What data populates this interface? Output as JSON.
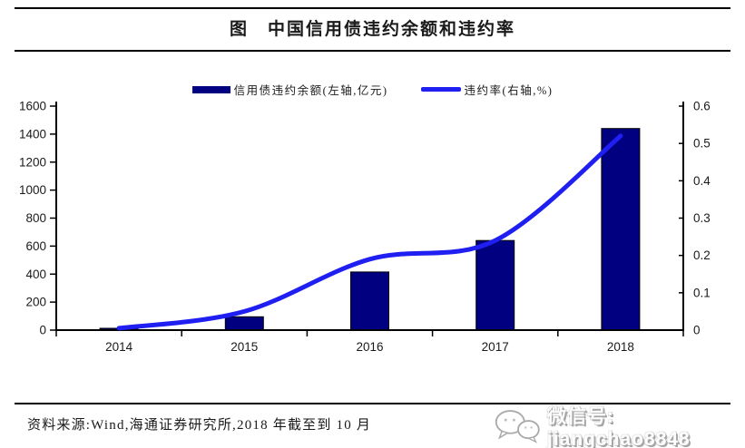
{
  "figure": {
    "title": "图　中国信用债违约余额和违约率",
    "source_note": "资料来源:Wind,海通证券研究所,2018 年截至到 10 月",
    "watermark_text": "微信号: jiangchao8848",
    "watermark_icon": "wechat-icon"
  },
  "chart_data": {
    "type": "combo-bar-line",
    "title": "中国信用债违约余额和违约率",
    "categories": [
      "2014",
      "2015",
      "2016",
      "2017",
      "2018"
    ],
    "series": [
      {
        "name": "信用债违约余额(左轴,亿元)",
        "type": "bar",
        "axis": "left",
        "color": "#000080",
        "values": [
          13,
          95,
          415,
          640,
          1440
        ]
      },
      {
        "name": "违约率(右轴,%)",
        "type": "line",
        "axis": "right",
        "color": "#1f1ff2",
        "values": [
          0.005,
          0.05,
          0.19,
          0.24,
          0.52
        ]
      }
    ],
    "left_axis": {
      "min": 0,
      "max": 1600,
      "step": 200,
      "tick_labels": [
        "0",
        "200",
        "400",
        "600",
        "800",
        "1000",
        "1200",
        "1400",
        "1600"
      ]
    },
    "right_axis": {
      "min": 0,
      "max": 0.6,
      "step": 0.1,
      "tick_labels": [
        "0",
        "0.1",
        "0.2",
        "0.3",
        "0.4",
        "0.5",
        "0.6"
      ]
    },
    "legend_position": "top",
    "grid": false,
    "axis_color": "#000000",
    "text_color": "#1a1a1a"
  }
}
